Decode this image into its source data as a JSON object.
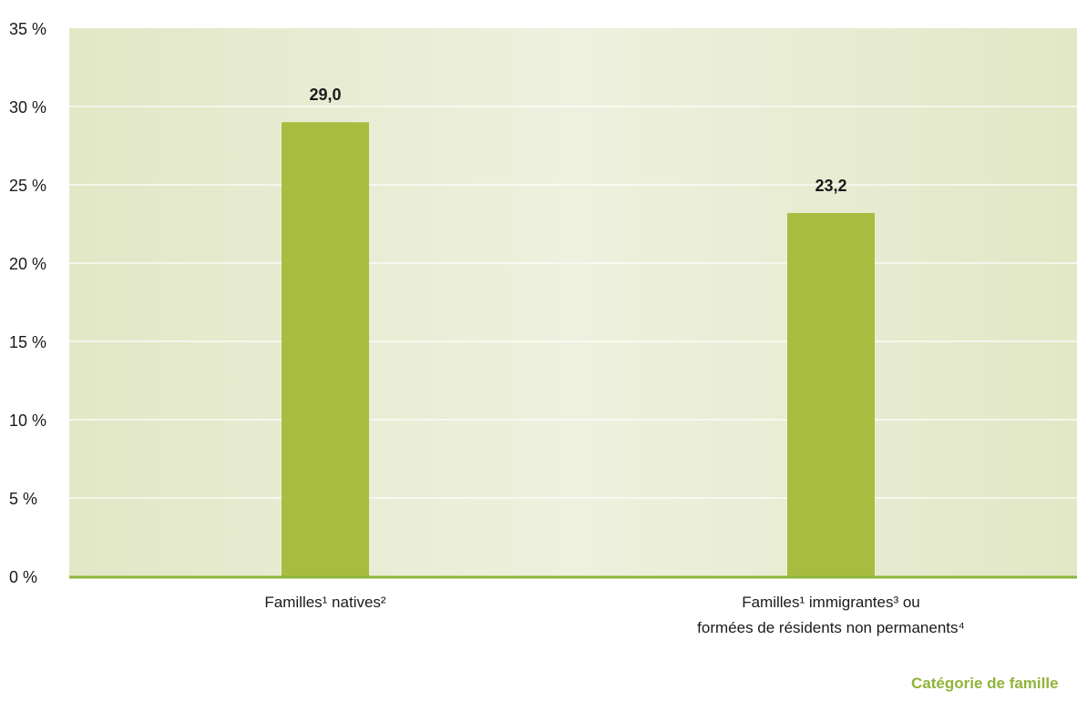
{
  "chart_data": {
    "type": "bar",
    "categories": [
      [
        "Familles¹ natives²"
      ],
      [
        "Familles¹ immigrantes³ ou",
        "formées de résidents non permanents⁴"
      ]
    ],
    "values": [
      29.0,
      23.2
    ],
    "data_labels": [
      "29,0",
      "23,2"
    ],
    "y_ticks": [
      0,
      5,
      10,
      15,
      20,
      25,
      30,
      35
    ],
    "y_tick_labels": [
      "0 %",
      "5 %",
      "10 %",
      "15 %",
      "20 %",
      "25 %",
      "30 %",
      "35 %"
    ],
    "ylim": [
      0,
      35
    ],
    "xlabel": "Catégorie de famille",
    "grid": true,
    "colors": {
      "bar": "#a8bd40",
      "axis": "#8fb43a",
      "grid": "#ffffff",
      "plot_bg_edge": "#e2e7c6",
      "plot_bg_center": "#eef1de",
      "xlabel": "#8fb43a"
    }
  }
}
